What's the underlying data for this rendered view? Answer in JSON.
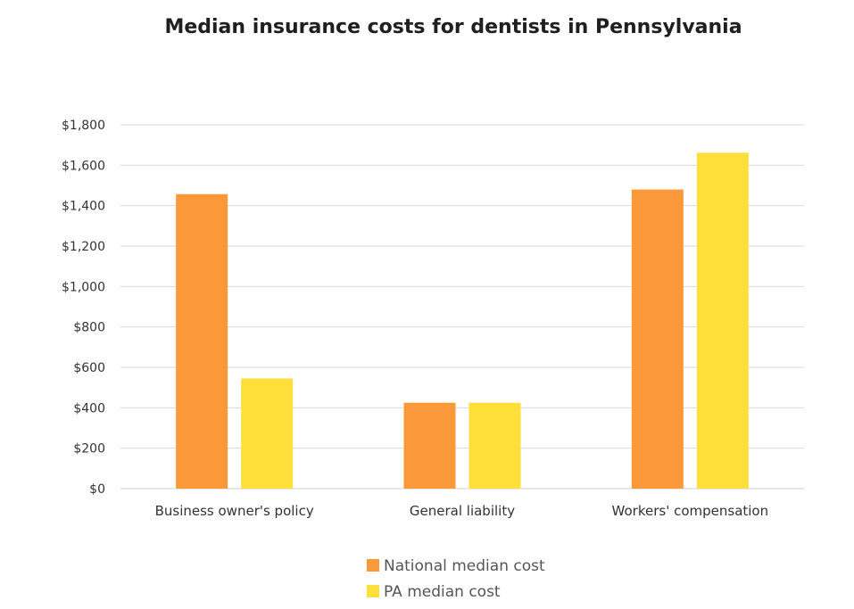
{
  "chart_data": {
    "type": "bar",
    "title": "Median insurance costs for dentists in Pennsylvania",
    "categories": [
      "Business owner's policy",
      "General liability",
      "Workers' compensation"
    ],
    "series": [
      {
        "name": "National median cost",
        "values": [
          1457,
          425,
          1480
        ],
        "color": "#fa983a"
      },
      {
        "name": "PA median cost",
        "values": [
          545,
          425,
          1662
        ],
        "color": "#fedf3a"
      }
    ],
    "ylim": [
      0,
      1800
    ],
    "yticks": [
      0,
      200,
      400,
      600,
      800,
      1000,
      1200,
      1400,
      1600,
      1800
    ],
    "ytick_labels": [
      "$0",
      "$200",
      "$400",
      "$600",
      "$800",
      "$1,000",
      "$1,200",
      "$1,400",
      "$1,600",
      "$1,800"
    ],
    "xlabel": "",
    "ylabel": "",
    "grid": true,
    "legend_position": "bottom-center"
  }
}
